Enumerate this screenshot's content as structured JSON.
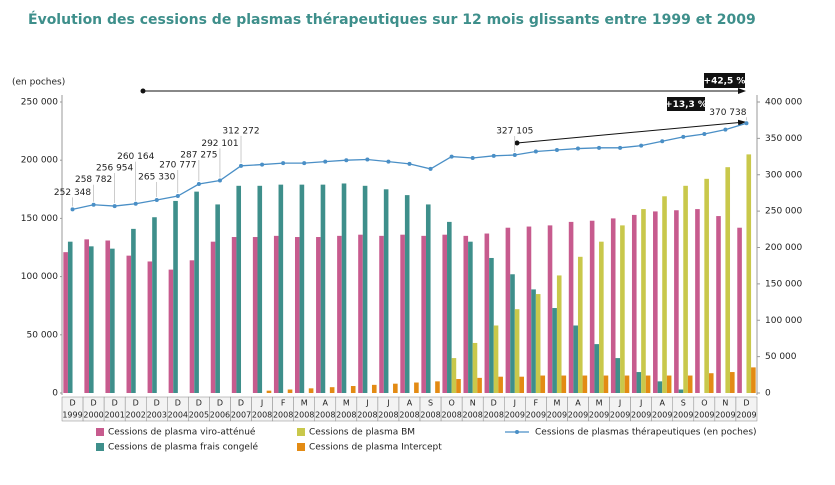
{
  "chart_data": {
    "type": "bar",
    "title": "Évolution des cessions de plasmas thérapeutiques sur 12 mois glissants entre 1999 et 2009",
    "y_axis_label": "(en poches)",
    "categories": [
      [
        "D",
        "1999"
      ],
      [
        "D",
        "2000"
      ],
      [
        "D",
        "2001"
      ],
      [
        "D",
        "2002"
      ],
      [
        "D",
        "2003"
      ],
      [
        "D",
        "2004"
      ],
      [
        "D",
        "2005"
      ],
      [
        "D",
        "2006"
      ],
      [
        "D",
        "2007"
      ],
      [
        "J",
        "2008"
      ],
      [
        "F",
        "2008"
      ],
      [
        "M",
        "2008"
      ],
      [
        "A",
        "2008"
      ],
      [
        "M",
        "2008"
      ],
      [
        "J",
        "2008"
      ],
      [
        "J",
        "2008"
      ],
      [
        "A",
        "2008"
      ],
      [
        "S",
        "2008"
      ],
      [
        "O",
        "2008"
      ],
      [
        "N",
        "2008"
      ],
      [
        "D",
        "2008"
      ],
      [
        "J",
        "2009"
      ],
      [
        "F",
        "2009"
      ],
      [
        "M",
        "2009"
      ],
      [
        "A",
        "2009"
      ],
      [
        "M",
        "2009"
      ],
      [
        "J",
        "2009"
      ],
      [
        "J",
        "2009"
      ],
      [
        "A",
        "2009"
      ],
      [
        "S",
        "2009"
      ],
      [
        "O",
        "2009"
      ],
      [
        "N",
        "2009"
      ],
      [
        "D",
        "2009"
      ]
    ],
    "series": [
      {
        "name": "Cessions de plasma viro-atténué",
        "type": "bar",
        "color": "#c75b8e",
        "values": [
          121000,
          132000,
          131000,
          118000,
          113000,
          106000,
          114000,
          130000,
          134000,
          134000,
          135000,
          134000,
          134000,
          135000,
          136000,
          135000,
          136000,
          135000,
          136000,
          135000,
          137000,
          142000,
          143000,
          144000,
          147000,
          148000,
          150000,
          153000,
          156000,
          157000,
          158000,
          152000,
          142000
        ]
      },
      {
        "name": "Cessions de plasma frais congelé",
        "type": "bar",
        "color": "#3e8f8b",
        "values": [
          130000,
          126000,
          124000,
          141000,
          151000,
          165000,
          173000,
          162000,
          178000,
          178000,
          179000,
          179000,
          179000,
          180000,
          178000,
          175000,
          170000,
          162000,
          147000,
          130000,
          116000,
          102000,
          89000,
          73000,
          58000,
          42000,
          30000,
          18000,
          10000,
          3000,
          null,
          null,
          null
        ]
      },
      {
        "name": "Cessions de plasma BM",
        "type": "bar",
        "color": "#c9c84b",
        "values": [
          null,
          null,
          null,
          null,
          null,
          null,
          null,
          null,
          null,
          null,
          null,
          null,
          null,
          null,
          null,
          null,
          null,
          null,
          30000,
          43000,
          58000,
          72000,
          85000,
          101000,
          117000,
          130000,
          144000,
          158000,
          169000,
          178000,
          184000,
          194000,
          205000
        ]
      },
      {
        "name": "Cessions de plasma Intercept",
        "type": "bar",
        "color": "#e38b14",
        "values": [
          null,
          null,
          null,
          null,
          null,
          null,
          null,
          null,
          null,
          2000,
          3000,
          4000,
          5000,
          6000,
          7000,
          8000,
          9000,
          10000,
          12000,
          13000,
          14000,
          14000,
          15000,
          15000,
          15000,
          15000,
          15000,
          15000,
          15000,
          15000,
          17000,
          18000,
          22000
        ]
      },
      {
        "name": "Cessions de plasmas thérapeutiques (en poches)",
        "type": "line",
        "axis": "y2",
        "color": "#4a8fc6",
        "values": [
          252348,
          258782,
          256954,
          260164,
          265330,
          270777,
          287275,
          292101,
          312272,
          314000,
          316000,
          316000,
          318000,
          320000,
          321000,
          318000,
          315000,
          308000,
          325000,
          323000,
          326000,
          327105,
          332000,
          334000,
          336000,
          337000,
          337000,
          340000,
          346000,
          352000,
          356000,
          362000,
          370738
        ],
        "value_labels": [
          "252 348",
          "258 782",
          "256 954",
          "260 164",
          "265 330",
          "270 777",
          "287 275",
          "292 101",
          "312 272",
          null,
          null,
          null,
          null,
          null,
          null,
          null,
          null,
          null,
          null,
          null,
          null,
          "327 105",
          null,
          null,
          null,
          null,
          null,
          null,
          null,
          null,
          null,
          null,
          "370 738"
        ]
      }
    ],
    "ylim": [
      0,
      250000
    ],
    "yticks": [
      0,
      {
        "value": 50000,
        "label": "50 000"
      },
      {
        "value": 100000,
        "label": "100 000"
      },
      {
        "value": 150000,
        "label": "150 000"
      },
      {
        "value": 200000,
        "label": "200 000"
      },
      {
        "value": 250000,
        "label": "250 000"
      }
    ],
    "y2lim": [
      0,
      400000
    ],
    "y2ticks": [
      0,
      {
        "value": 50000,
        "label": "50 000"
      },
      {
        "value": 100000,
        "label": "100 000"
      },
      {
        "value": 150000,
        "label": "150 000"
      },
      {
        "value": 200000,
        "label": "200 000"
      },
      {
        "value": 250000,
        "label": "250 000"
      },
      {
        "value": 300000,
        "label": "300 000"
      },
      {
        "value": 350000,
        "label": "350 000"
      },
      {
        "value": 400000,
        "label": "400 000"
      }
    ],
    "annotations": [
      "+42,5 %",
      "+13,3 %"
    ]
  }
}
